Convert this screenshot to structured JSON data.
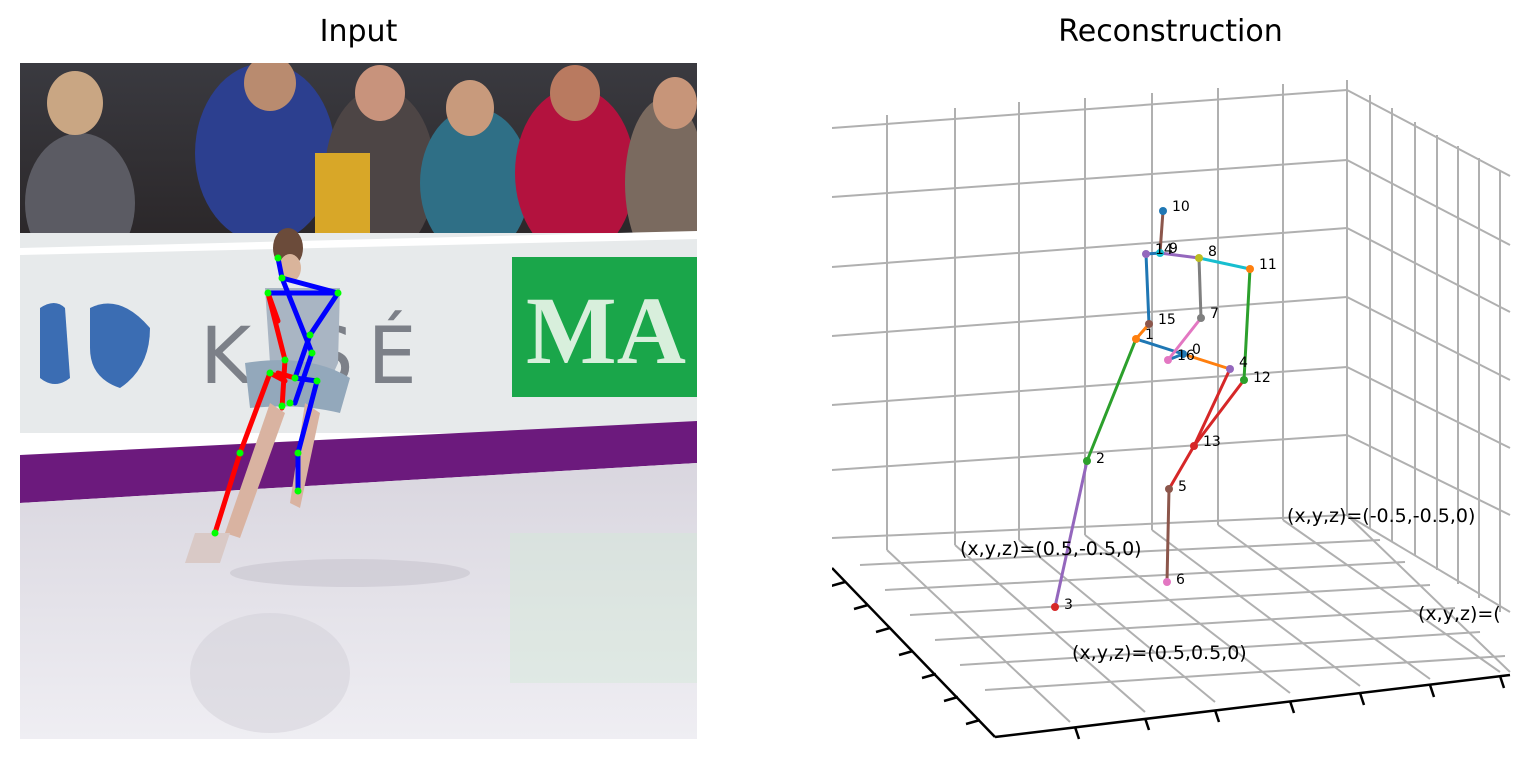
{
  "titles": {
    "input": "Input",
    "reconstruction": "Reconstruction"
  },
  "banner": {
    "brand_partial": "K SÉ",
    "sponsor_partial": "MA"
  },
  "colors": {
    "left_limb": "#ff0000",
    "right_limb": "#0000ff",
    "keypoint": "#00ff00",
    "grid": "#b0b0b0",
    "board_purple": "#6c1a7d",
    "banner_green": "#1aa64a"
  },
  "skeleton_2d_keypoints": [
    "head-top",
    "neck",
    "left-shoulder",
    "right-shoulder",
    "right-elbow",
    "right-wrist",
    "left-hip",
    "right-hip",
    "left-knee",
    "right-knee",
    "left-ankle",
    "right-ankle"
  ],
  "skeleton_3d": {
    "joints": [
      {
        "id": "0",
        "label": "0"
      },
      {
        "id": "1",
        "label": "1"
      },
      {
        "id": "2",
        "label": "2"
      },
      {
        "id": "3",
        "label": "3"
      },
      {
        "id": "4",
        "label": "4"
      },
      {
        "id": "5",
        "label": "5"
      },
      {
        "id": "6",
        "label": "6"
      },
      {
        "id": "7",
        "label": "7"
      },
      {
        "id": "8",
        "label": "8"
      },
      {
        "id": "9",
        "label": "9"
      },
      {
        "id": "10",
        "label": "10"
      },
      {
        "id": "11",
        "label": "11"
      },
      {
        "id": "12",
        "label": "12"
      },
      {
        "id": "13",
        "label": "13"
      },
      {
        "id": "14",
        "label": "14"
      },
      {
        "id": "15",
        "label": "15"
      },
      {
        "id": "16",
        "label": "16"
      }
    ],
    "bone_colors": [
      "#1f77b4",
      "#ff7f0e",
      "#2ca02c",
      "#d62728",
      "#9467bd",
      "#8c564b",
      "#e377c2",
      "#7f7f7f",
      "#bcbd22",
      "#17becf"
    ]
  },
  "corner_labels": {
    "a": "(x,y,z)=(0.5,-0.5,0)",
    "b": "(x,y,z)=(-0.5,-0.5,0)",
    "c": "(x,y,z)=(0.5,0.5,0)",
    "d": "(x,y,z)=("
  }
}
